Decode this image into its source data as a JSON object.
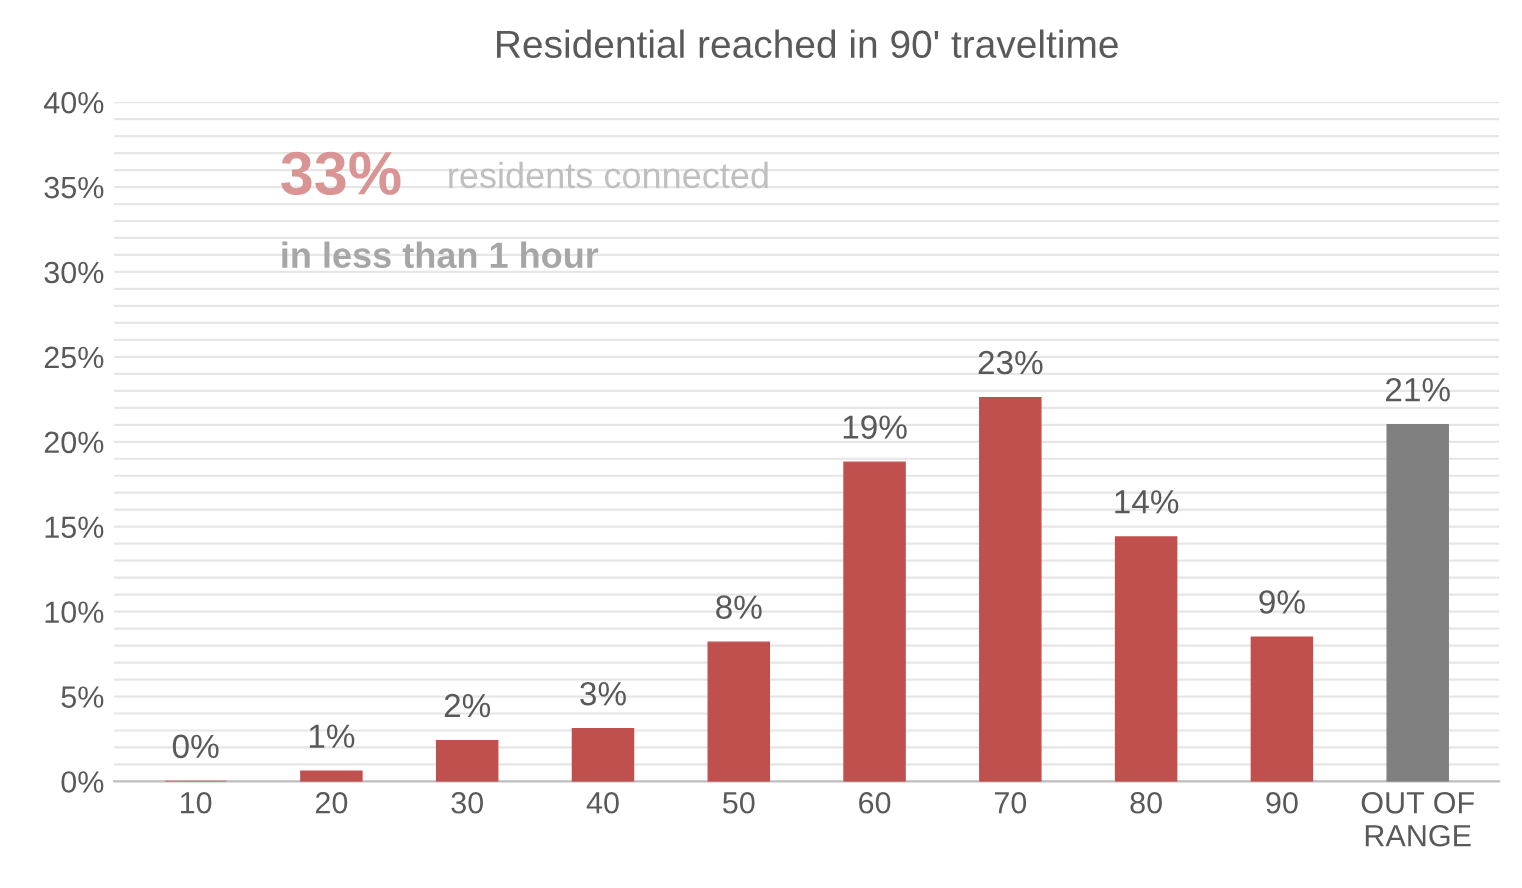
{
  "chart_data": {
    "type": "bar",
    "title": "Residential reached in 90' traveltime",
    "categories": [
      "10",
      "20",
      "30",
      "40",
      "50",
      "60",
      "70",
      "80",
      "90",
      "OUT OF\nRANGE"
    ],
    "values": [
      0,
      0.6,
      2.4,
      3.1,
      8.2,
      18.8,
      22.6,
      14.4,
      8.5,
      21
    ],
    "value_labels": [
      "0%",
      "1%",
      "2%",
      "3%",
      "8%",
      "19%",
      "23%",
      "14%",
      "9%",
      "21%"
    ],
    "colors": [
      "#c0504d",
      "#c0504d",
      "#c0504d",
      "#c0504d",
      "#c0504d",
      "#c0504d",
      "#c0504d",
      "#c0504d",
      "#c0504d",
      "#808080"
    ],
    "ylim": [
      0,
      40
    ],
    "yticks": [
      {
        "value": 0,
        "label": "0%"
      },
      {
        "value": 1,
        "label": null
      },
      {
        "value": 2,
        "label": null
      },
      {
        "value": 3,
        "label": null
      },
      {
        "value": 4,
        "label": null
      },
      {
        "value": 5,
        "label": "5%"
      },
      {
        "value": 6,
        "label": null
      },
      {
        "value": 7,
        "label": null
      },
      {
        "value": 8,
        "label": null
      },
      {
        "value": 9,
        "label": null
      },
      {
        "value": 10,
        "label": "10%"
      },
      {
        "value": 11,
        "label": null
      },
      {
        "value": 12,
        "label": null
      },
      {
        "value": 13,
        "label": null
      },
      {
        "value": 14,
        "label": null
      },
      {
        "value": 15,
        "label": "15%"
      },
      {
        "value": 16,
        "label": null
      },
      {
        "value": 17,
        "label": null
      },
      {
        "value": 18,
        "label": null
      },
      {
        "value": 19,
        "label": null
      },
      {
        "value": 20,
        "label": "20%"
      },
      {
        "value": 21,
        "label": null
      },
      {
        "value": 22,
        "label": null
      },
      {
        "value": 23,
        "label": null
      },
      {
        "value": 24,
        "label": null
      },
      {
        "value": 25,
        "label": "25%"
      },
      {
        "value": 26,
        "label": null
      },
      {
        "value": 27,
        "label": null
      },
      {
        "value": 28,
        "label": null
      },
      {
        "value": 29,
        "label": null
      },
      {
        "value": 30,
        "label": "30%"
      },
      {
        "value": 31,
        "label": null
      },
      {
        "value": 32,
        "label": null
      },
      {
        "value": 33,
        "label": null
      },
      {
        "value": 34,
        "label": null
      },
      {
        "value": 35,
        "label": "35%"
      },
      {
        "value": 36,
        "label": null
      },
      {
        "value": 37,
        "label": null
      },
      {
        "value": 38,
        "label": null
      },
      {
        "value": 39,
        "label": null
      },
      {
        "value": 40,
        "label": "40%"
      }
    ],
    "grid": "y",
    "annotations": [
      "33%",
      "residents connected",
      "in less than 1 hour"
    ]
  }
}
